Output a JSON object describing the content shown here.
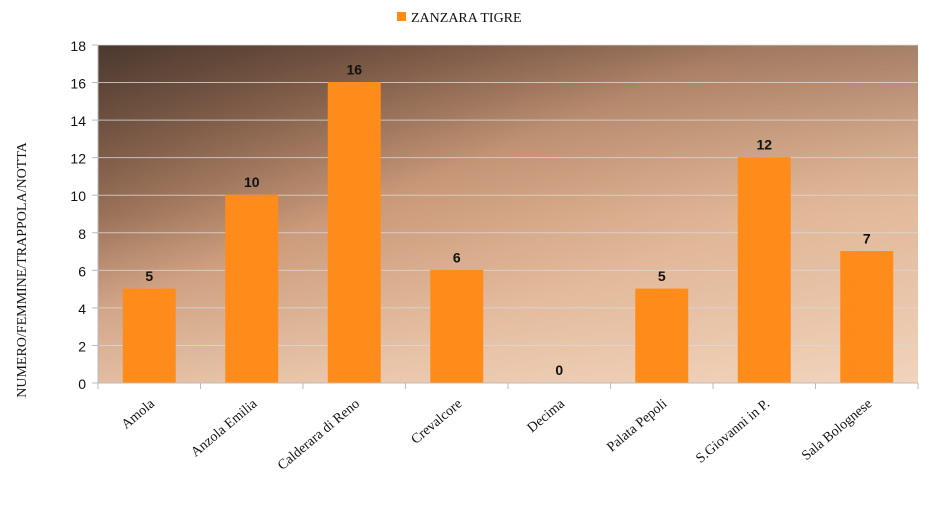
{
  "chart_data": {
    "type": "bar",
    "y_label": "NUMERO/FEMMINE/TRAPPOLA/NOTTA",
    "categories": [
      "Amola",
      "Anzola Emilia",
      "Calderara di Reno",
      "Crevalcore",
      "Decima",
      "Palata Pepoli",
      "S.Giovanni in P.",
      "Sala Bolognese"
    ],
    "series": [
      {
        "name": "ZANZARA TIGRE",
        "color": "#ff8c1a",
        "values": [
          5,
          10,
          16,
          6,
          0,
          5,
          12,
          7
        ]
      }
    ],
    "ylim": [
      0,
      18
    ],
    "yticks": [
      0,
      2,
      4,
      6,
      8,
      10,
      12,
      14,
      16,
      18
    ],
    "grid": true,
    "legend": "top"
  }
}
